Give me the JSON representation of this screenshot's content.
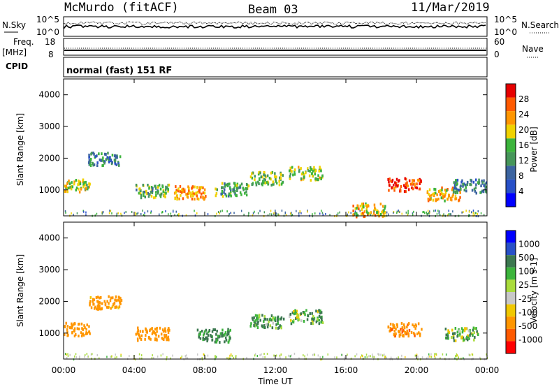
{
  "header": {
    "station": "McMurdo (fitACF)",
    "beam": "Beam 03",
    "date": "11/Mar/2019"
  },
  "left_labels": {
    "nsky": "N.Sky",
    "nsky_hi": "10^5",
    "nsky_lo": "10^0",
    "freq": "Freq.",
    "freq_unit": "[MHz]",
    "freq_hi": "18",
    "freq_lo": "8",
    "cpid": "CPID"
  },
  "right_labels": {
    "nsearch": "N.Search",
    "nsearch_hi": "10^5",
    "nsearch_lo": "10^0",
    "nave": "Nave",
    "nave_hi": "60",
    "nave_lo": "0"
  },
  "cpid_text": "normal (fast) 151 RF",
  "x_axis": {
    "label": "Time UT",
    "ticks": [
      "00:00",
      "04:00",
      "08:00",
      "12:00",
      "16:00",
      "20:00",
      "00:00"
    ]
  },
  "colors": {
    "power_scale": [
      "#0000ff",
      "#2850c8",
      "#3c64a0",
      "#46965a",
      "#3cb43c",
      "#f0d200",
      "#ff9600",
      "#ff5a00",
      "#e60000"
    ],
    "velocity_scale": [
      "#ff0000",
      "#ff5a00",
      "#ff9600",
      "#f0c800",
      "#c8c8c8",
      "#aadc3c",
      "#3cb43c",
      "#3c7850",
      "#2850c8",
      "#0000ff"
    ]
  },
  "chart_data": [
    {
      "type": "heatmap",
      "panel": "power",
      "ylabel": "Slant Range [km]",
      "xlim": [
        "00:00",
        "00:00"
      ],
      "ylim": [
        180,
        4500
      ],
      "yticks": [
        "1000",
        "2000",
        "3000",
        "4000"
      ],
      "colorbar": {
        "label": "Power [dB]",
        "ticks": [
          "4",
          "8",
          "12",
          "16",
          "20",
          "24",
          "28"
        ],
        "range": [
          0,
          30
        ]
      },
      "blobs": [
        {
          "t": 0.5,
          "range": 1150,
          "value": 18
        },
        {
          "t": 2.3,
          "range": 2000,
          "value": 10
        },
        {
          "t": 5.0,
          "range": 1000,
          "value": 14
        },
        {
          "t": 7.2,
          "range": 950,
          "value": 22
        },
        {
          "t": 9.5,
          "range": 1050,
          "value": 13
        },
        {
          "t": 11.5,
          "range": 1400,
          "value": 15
        },
        {
          "t": 13.7,
          "range": 1550,
          "value": 16
        },
        {
          "t": 17.3,
          "range": 400,
          "value": 20
        },
        {
          "t": 19.3,
          "range": 1200,
          "value": 26
        },
        {
          "t": 21.5,
          "range": 900,
          "value": 20
        },
        {
          "t": 23.0,
          "range": 1150,
          "value": 10
        }
      ]
    },
    {
      "type": "heatmap",
      "panel": "velocity",
      "ylabel": "Slant Range [km]",
      "xlabel": "Time UT",
      "xlim": [
        "00:00",
        "00:00"
      ],
      "ylim": [
        180,
        4500
      ],
      "yticks": [
        "1000",
        "2000",
        "3000",
        "4000"
      ],
      "colorbar": {
        "label": "Velocity [m s-1]",
        "ticks": [
          "1000",
          "500",
          "100",
          "25",
          "-25",
          "-100",
          "-500",
          "-1000"
        ],
        "range": [
          -1000,
          1000
        ]
      },
      "blobs": [
        {
          "t": 0.5,
          "range": 1150,
          "value": -300
        },
        {
          "t": 2.3,
          "range": 2000,
          "value": -200
        },
        {
          "t": 5.0,
          "range": 1000,
          "value": -250
        },
        {
          "t": 8.5,
          "range": 950,
          "value": 150
        },
        {
          "t": 11.5,
          "range": 1400,
          "value": 120
        },
        {
          "t": 13.7,
          "range": 1550,
          "value": 80
        },
        {
          "t": 19.3,
          "range": 1150,
          "value": -400
        },
        {
          "t": 22.5,
          "range": 1000,
          "value": 60
        }
      ]
    }
  ]
}
